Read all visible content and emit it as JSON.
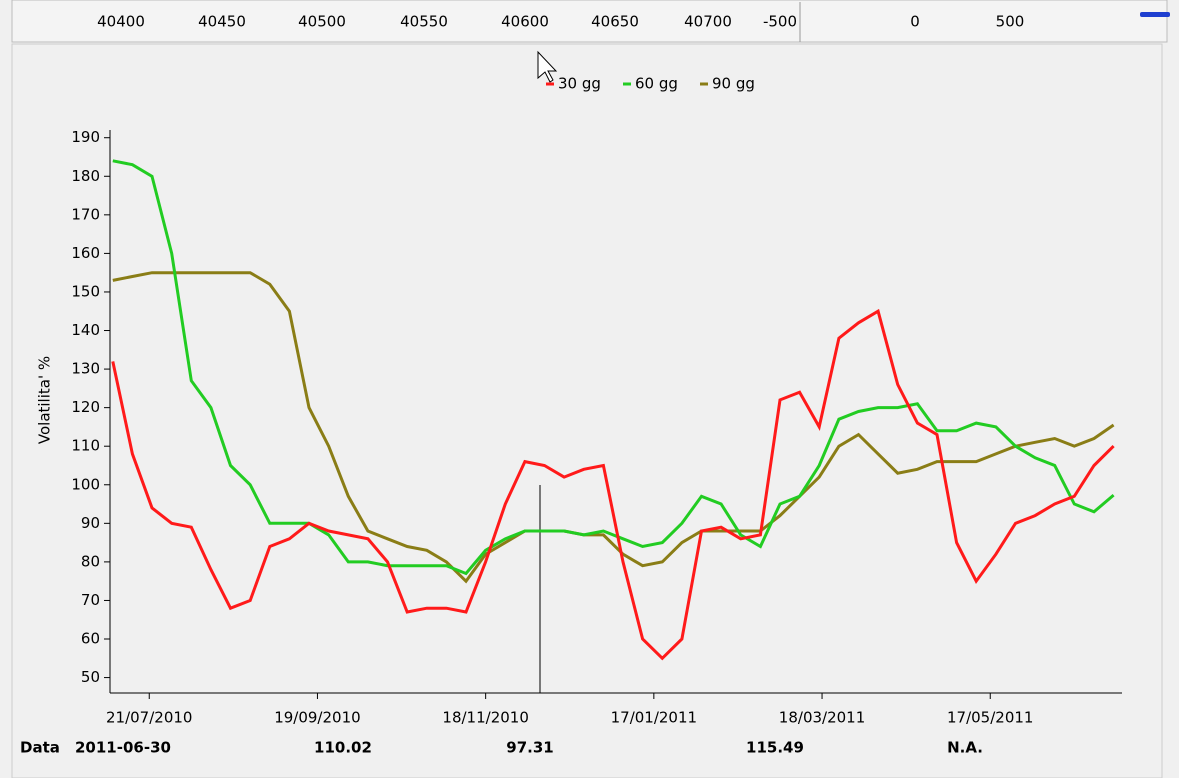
{
  "top_ruler": {
    "left_labels": [
      40400,
      40450,
      40500,
      40550,
      40600,
      40650,
      40700
    ],
    "right_labels": [
      -500,
      0,
      500
    ]
  },
  "chart_data": {
    "type": "line",
    "y_label": "Volatilita' %",
    "x": [
      "2010-07-08",
      "2010-07-15",
      "2010-07-22",
      "2010-07-29",
      "2010-08-05",
      "2010-08-12",
      "2010-08-19",
      "2010-08-26",
      "2010-09-02",
      "2010-09-09",
      "2010-09-16",
      "2010-09-23",
      "2010-09-30",
      "2010-10-07",
      "2010-10-14",
      "2010-10-21",
      "2010-10-28",
      "2010-11-04",
      "2010-11-11",
      "2010-11-18",
      "2010-11-25",
      "2010-12-02",
      "2010-12-09",
      "2010-12-16",
      "2010-12-23",
      "2010-12-30",
      "2011-01-06",
      "2011-01-13",
      "2011-01-20",
      "2011-01-27",
      "2011-02-03",
      "2011-02-10",
      "2011-02-17",
      "2011-02-24",
      "2011-03-03",
      "2011-03-10",
      "2011-03-17",
      "2011-03-24",
      "2011-03-31",
      "2011-04-07",
      "2011-04-14",
      "2011-04-21",
      "2011-04-28",
      "2011-05-05",
      "2011-05-12",
      "2011-05-19",
      "2011-05-26",
      "2011-06-02",
      "2011-06-09",
      "2011-06-16",
      "2011-06-23",
      "2011-06-30"
    ],
    "series": [
      {
        "name": "30 gg",
        "color": "#ff1a1a",
        "values": [
          132,
          108,
          94,
          90,
          89,
          78,
          68,
          70,
          84,
          86,
          90,
          88,
          87,
          86,
          80,
          67,
          68,
          68,
          67,
          80,
          95,
          106,
          105,
          102,
          104,
          105,
          80,
          60,
          55,
          60,
          88,
          89,
          86,
          87,
          122,
          124,
          115,
          138,
          142,
          145,
          126,
          116,
          113,
          85,
          75,
          82,
          90,
          92,
          95,
          97,
          105,
          110.02
        ]
      },
      {
        "name": "60 gg",
        "color": "#22cc22",
        "values": [
          184,
          183,
          180,
          160,
          127,
          120,
          105,
          100,
          90,
          90,
          90,
          87,
          80,
          80,
          79,
          79,
          79,
          79,
          77,
          83,
          86,
          88,
          88,
          88,
          87,
          88,
          86,
          84,
          85,
          90,
          97,
          95,
          87,
          84,
          95,
          97,
          105,
          117,
          119,
          120,
          120,
          121,
          114,
          114,
          116,
          115,
          110,
          107,
          105,
          95,
          93,
          97.31
        ]
      },
      {
        "name": "90 gg",
        "color": "#8a7d16",
        "values": [
          153,
          154,
          155,
          155,
          155,
          155,
          155,
          155,
          152,
          145,
          120,
          110,
          97,
          88,
          86,
          84,
          83,
          80,
          75,
          82,
          85,
          88,
          88,
          88,
          87,
          87,
          82,
          79,
          80,
          85,
          88,
          88,
          88,
          88,
          92,
          97,
          102,
          110,
          113,
          108,
          103,
          104,
          106,
          106,
          106,
          108,
          110,
          111,
          112,
          110,
          112,
          115.49
        ]
      }
    ],
    "xlim": [
      "2010-07-07",
      "2011-07-03"
    ],
    "xticks": [
      {
        "value": "2010-07-21",
        "label": "21/07/2010"
      },
      {
        "value": "2010-09-19",
        "label": "19/09/2010"
      },
      {
        "value": "2010-11-18",
        "label": "18/11/2010"
      },
      {
        "value": "2011-01-17",
        "label": "17/01/2011"
      },
      {
        "value": "2011-03-18",
        "label": "18/03/2011"
      },
      {
        "value": "2011-05-17",
        "label": "17/05/2011"
      }
    ],
    "ylim": [
      46,
      192
    ],
    "yticks": [
      50,
      60,
      70,
      80,
      90,
      100,
      110,
      120,
      130,
      140,
      150,
      160,
      170,
      180,
      190
    ],
    "legend": "top"
  },
  "status": {
    "label": "Data",
    "na": "N.A.",
    "na_color": "#2020dd"
  }
}
